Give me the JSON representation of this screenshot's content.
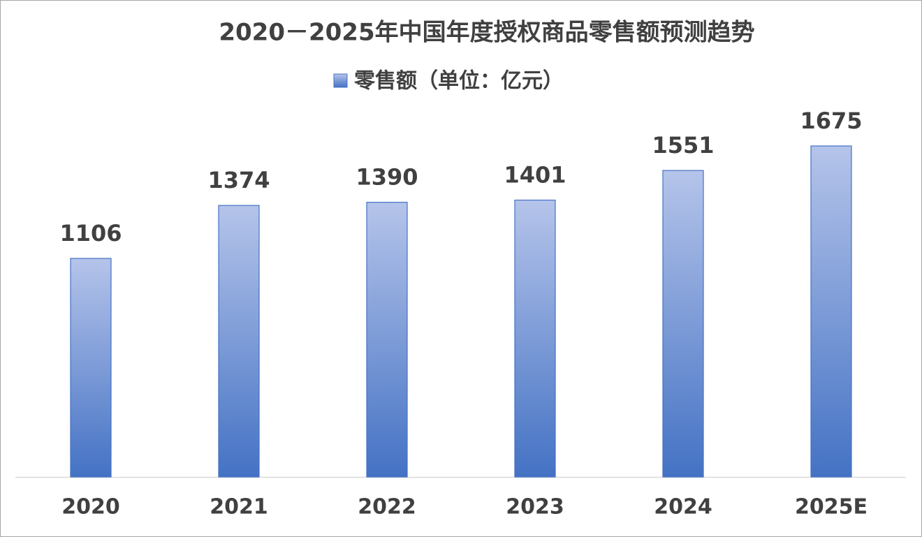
{
  "chart_data": {
    "type": "bar",
    "title": "2020－2025年中国年度授权商品零售额预测趋势",
    "categories": [
      "2020",
      "2021",
      "2022",
      "2023",
      "2024",
      "2025E"
    ],
    "series": [
      {
        "name": "零售额（单位：亿元）",
        "color": "#4472c4",
        "values": [
          1106,
          1374,
          1390,
          1401,
          1551,
          1675
        ]
      }
    ],
    "legend": "top",
    "grid": false
  }
}
